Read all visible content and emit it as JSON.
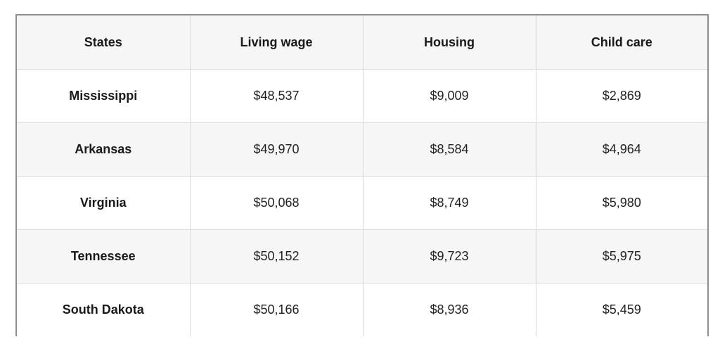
{
  "table": {
    "headers": [
      "States",
      "Living wage",
      "Housing",
      "Child care"
    ],
    "rows": [
      {
        "state": "Mississippi",
        "living_wage": "$48,537",
        "housing": "$9,009",
        "child_care": "$2,869"
      },
      {
        "state": "Arkansas",
        "living_wage": "$49,970",
        "housing": "$8,584",
        "child_care": "$4,964"
      },
      {
        "state": "Virginia",
        "living_wage": "$50,068",
        "housing": "$8,749",
        "child_care": "$5,980"
      },
      {
        "state": "Tennessee",
        "living_wage": "$50,152",
        "housing": "$9,723",
        "child_care": "$5,975"
      },
      {
        "state": "South Dakota",
        "living_wage": "$50,166",
        "housing": "$8,936",
        "child_care": "$5,459"
      }
    ]
  },
  "colors": {
    "border": "#8e8e8e",
    "header_bg": "#f6f6f6",
    "stripe_bg": "#f6f6f6",
    "row_bg": "#ffffff",
    "gridline": "#d9d9d9",
    "text": "#1a1a1a"
  }
}
